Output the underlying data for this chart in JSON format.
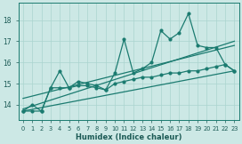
{
  "xlabel": "Humidex (Indice chaleur)",
  "x": [
    0,
    1,
    2,
    3,
    4,
    5,
    6,
    7,
    8,
    9,
    10,
    11,
    12,
    13,
    14,
    15,
    16,
    17,
    18,
    19,
    20,
    21,
    22,
    23
  ],
  "y_main": [
    13.7,
    14.0,
    13.7,
    14.8,
    15.6,
    14.8,
    15.1,
    15.0,
    14.9,
    14.7,
    15.5,
    17.1,
    15.5,
    15.7,
    16.0,
    17.5,
    17.1,
    17.4,
    18.3,
    16.8,
    16.7,
    16.7,
    15.9,
    15.6
  ],
  "y_low": [
    13.7,
    13.7,
    13.7,
    14.8,
    14.8,
    14.8,
    14.9,
    14.9,
    14.8,
    14.7,
    15.0,
    15.1,
    15.2,
    15.3,
    15.3,
    15.4,
    15.5,
    15.5,
    15.6,
    15.6,
    15.7,
    15.8,
    15.9,
    15.6
  ],
  "trend1": [
    13.8,
    17.0
  ],
  "trend2": [
    14.3,
    16.8
  ],
  "trend3": [
    13.7,
    15.6
  ],
  "line_color": "#1b7b70",
  "bg_color": "#cce8e5",
  "grid_color": "#aad4cf",
  "ylim": [
    13.3,
    18.8
  ],
  "yticks": [
    14,
    15,
    16,
    17,
    18
  ],
  "xlim": [
    -0.5,
    23.5
  ],
  "markersize": 3,
  "linewidth": 0.9
}
